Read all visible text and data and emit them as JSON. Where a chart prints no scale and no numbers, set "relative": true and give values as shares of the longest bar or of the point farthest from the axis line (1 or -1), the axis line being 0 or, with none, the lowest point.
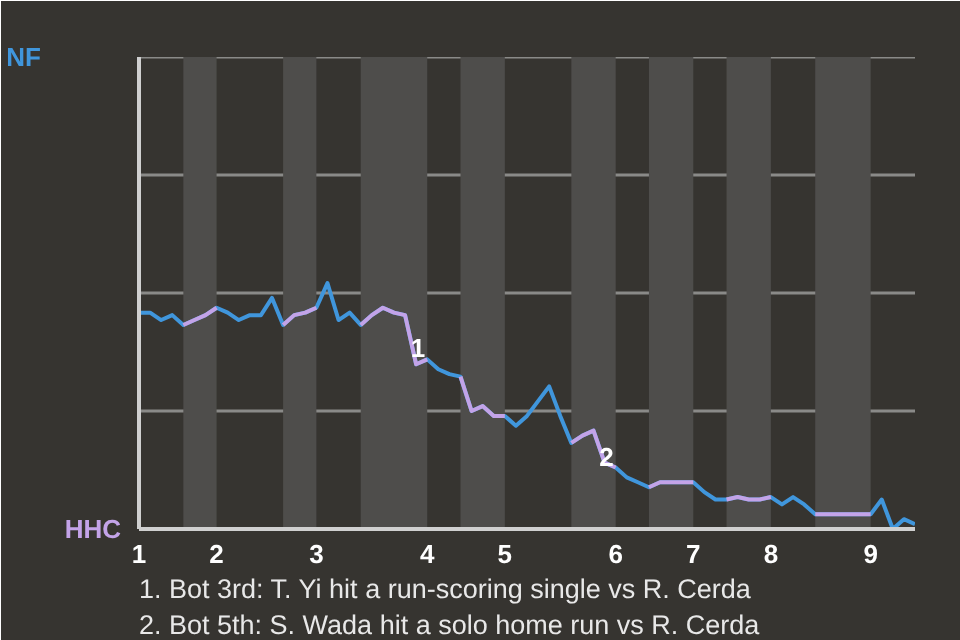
{
  "chart_data": {
    "type": "line",
    "relative": true,
    "categories": [
      "1",
      null,
      null,
      null,
      null,
      null,
      null,
      "2",
      null,
      null,
      null,
      null,
      null,
      null,
      null,
      null,
      "3",
      null,
      null,
      null,
      null,
      null,
      null,
      null,
      null,
      null,
      "4",
      null,
      null,
      null,
      null,
      null,
      null,
      "5",
      null,
      null,
      null,
      null,
      null,
      null,
      null,
      null,
      null,
      "6",
      null,
      null,
      null,
      null,
      null,
      null,
      "7",
      null,
      null,
      null,
      null,
      null,
      null,
      "8",
      null,
      null,
      null,
      null,
      null,
      null,
      null,
      null,
      "9",
      null,
      null,
      null,
      null
    ],
    "series": [
      {
        "name": "NF",
        "color": "#4096dc",
        "values": [
          0.88,
          0.88,
          0.85,
          0.87,
          0.83,
          0.85,
          0.87,
          0.9,
          0.88,
          0.85,
          0.87,
          0.87,
          0.94,
          0.83,
          0.87,
          0.88,
          0.9,
          1.0,
          0.85,
          0.88,
          0.83,
          0.87,
          0.9,
          0.88,
          0.87,
          0.67,
          0.69,
          0.65,
          0.63,
          0.62,
          0.48,
          0.5,
          0.46,
          0.46,
          0.42,
          0.46,
          0.52,
          0.58,
          0.46,
          0.35,
          0.38,
          0.4,
          0.27,
          0.25,
          0.21,
          0.19,
          0.17,
          0.19,
          0.19,
          0.19,
          0.19,
          0.15,
          0.12,
          0.12,
          0.13,
          0.12,
          0.12,
          0.13,
          0.1,
          0.13,
          0.1,
          0.06,
          0.06,
          0.06,
          0.06,
          0.06,
          0.06,
          0.12,
          0.0,
          0.04,
          0.02
        ]
      },
      {
        "name": "HHC",
        "color": "#c3a3e8",
        "values": [
          null,
          null,
          null,
          null,
          0.83,
          0.85,
          0.87,
          0.9,
          null,
          null,
          null,
          null,
          null,
          0.83,
          0.87,
          0.88,
          0.9,
          null,
          null,
          null,
          0.83,
          0.87,
          0.9,
          0.88,
          0.87,
          0.67,
          0.69,
          null,
          null,
          0.62,
          0.48,
          0.5,
          0.46,
          0.46,
          null,
          null,
          null,
          null,
          null,
          0.35,
          0.38,
          0.4,
          0.27,
          0.25,
          null,
          null,
          0.17,
          0.19,
          0.19,
          0.19,
          0.19,
          null,
          null,
          0.12,
          0.13,
          0.12,
          0.12,
          0.13,
          null,
          null,
          null,
          0.06,
          0.06,
          0.06,
          0.06,
          0.06,
          0.06,
          null,
          null,
          null,
          null
        ]
      }
    ],
    "ref_lines": [
      {
        "axis": "y",
        "value": 0.48,
        "color": "#8a8a88"
      },
      {
        "axis": "y",
        "value": 0.96,
        "color": "#8a8a88"
      },
      {
        "axis": "y",
        "value": 1.44,
        "color": "#8a8a88"
      },
      {
        "axis": "y",
        "value": 1.92,
        "color": "#8a8a88"
      }
    ],
    "line_style": "solid",
    "annotations": [
      {
        "text": "1",
        "x": "4"
      },
      {
        "text": "2",
        "x": "6"
      },
      "1. Bot 3rd: T. Yi hit a run-scoring single vs R. Cerda",
      "2. Bot 5th: S. Wada hit a solo home run vs R. Cerda"
    ]
  }
}
